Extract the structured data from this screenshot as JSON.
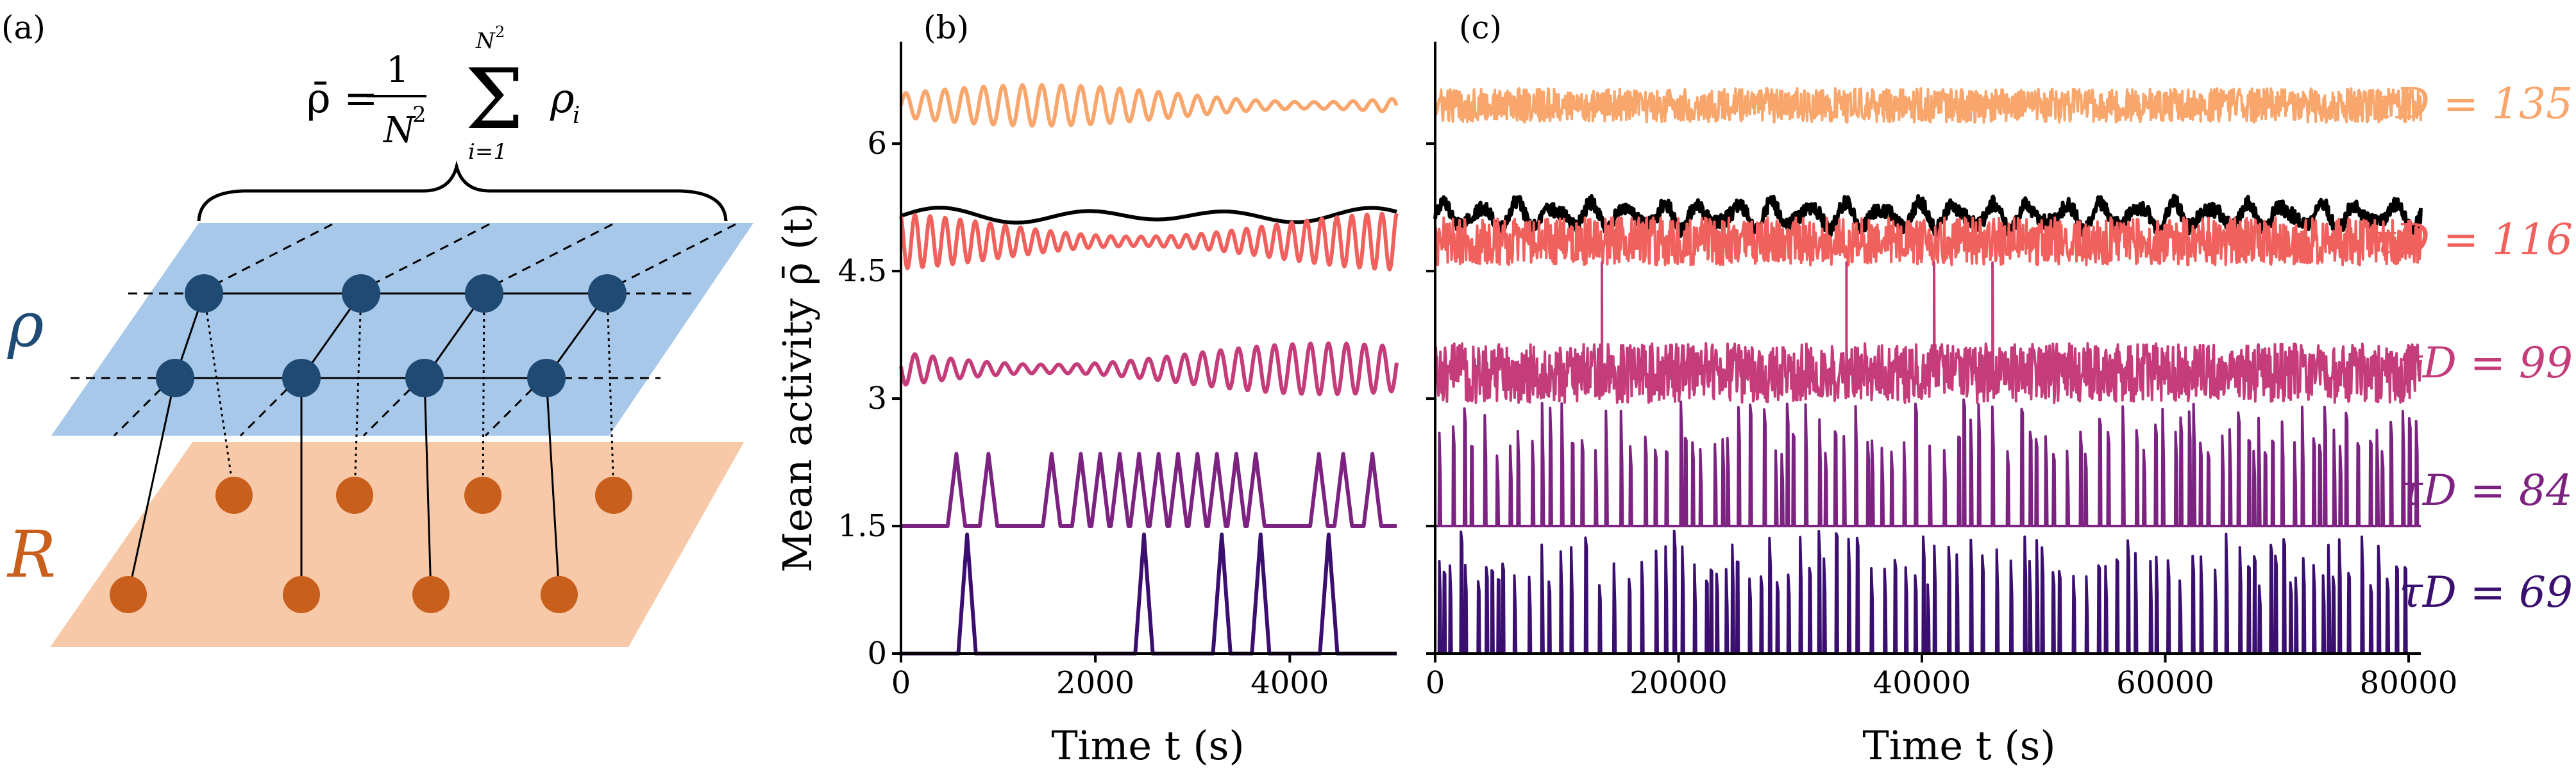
{
  "panel_a": {
    "label": "(a)",
    "formula": {
      "lhs": "ρ̄ =",
      "numerator": "1",
      "denominator": "N",
      "denominator_exp": "2",
      "sum_symbol": "Σ",
      "sum_upper": "N",
      "sum_upper_exp": "2",
      "sum_lower": "i=1",
      "term": "ρ",
      "term_sub": "i"
    },
    "layer_top_label": "ρ",
    "layer_bottom_label": "R",
    "colors": {
      "top_plane": "#a8c8ea",
      "top_node": "#1e4a73",
      "bottom_plane": "#f8c9a8",
      "bottom_node": "#c95f1c"
    }
  },
  "chart_data": [
    {
      "panel": "(b)",
      "type": "line",
      "xlabel": "Time t (s)",
      "ylabel": "Mean activity ρ̄ (t)",
      "xlim": [
        0,
        5100
      ],
      "ylim": [
        0,
        7.2
      ],
      "xticks": [
        "0",
        "2000",
        "4000"
      ],
      "yticks": [
        "0",
        "1.5",
        "3",
        "4.5",
        "6"
      ],
      "ytick_values": [
        0,
        1.5,
        3,
        4.5,
        6
      ],
      "series": [
        {
          "name": "τD = 135",
          "color": "#f9a66c",
          "pattern": "oscillation",
          "baseline": 6.45,
          "amplitude": 0.2,
          "period": 200
        },
        {
          "color": "#000000",
          "pattern": "slow-envelope",
          "baseline": 5.15,
          "amplitude": 0.07,
          "period": 1500
        },
        {
          "name": "τD = 116",
          "color": "#f0605d",
          "pattern": "oscillation",
          "baseline": 4.85,
          "amplitude": 0.28,
          "period": 155
        },
        {
          "name": "τD = 99",
          "color": "#c43c7a",
          "pattern": "oscillation",
          "baseline": 3.35,
          "amplitude": 0.25,
          "period": 185
        },
        {
          "name": "τD = 84",
          "color": "#7c2382",
          "pattern": "spikes",
          "baseline": 1.5,
          "spike_height": 0.85,
          "spike_times": [
            570,
            900,
            1550,
            1850,
            2050,
            2250,
            2450,
            2650,
            2850,
            3050,
            3250,
            3450,
            3650,
            4300,
            4550,
            4850
          ]
        },
        {
          "name": "τD = 69",
          "color": "#3b0f70",
          "pattern": "spikes",
          "baseline": 0,
          "spike_height": 1.4,
          "spike_times": [
            680,
            2500,
            3300,
            3700,
            4400
          ]
        }
      ]
    },
    {
      "panel": "(c)",
      "type": "line",
      "xlabel": "Time t (s)",
      "xlim": [
        0,
        81000
      ],
      "ylim": [
        0,
        7.2
      ],
      "xticks": [
        "0",
        "20000",
        "40000",
        "60000",
        "80000"
      ],
      "series": [
        {
          "name": "τD = 135",
          "color": "#f9a66c",
          "pattern": "dense-noise",
          "baseline": 6.45,
          "amplitude": 0.2
        },
        {
          "color": "#000000",
          "pattern": "envelope",
          "baseline": 5.15,
          "amplitude": 0.12
        },
        {
          "name": "τD = 116",
          "color": "#f0605d",
          "pattern": "dense-noise",
          "baseline": 4.85,
          "amplitude": 0.28
        },
        {
          "name": "τD = 99",
          "color": "#c43c7a",
          "pattern": "dense-noise",
          "baseline": 3.3,
          "amplitude": 0.35
        },
        {
          "name": "τD = 84",
          "color": "#7c2382",
          "pattern": "dense-spikes",
          "baseline": 1.5,
          "spike_height": 1.5
        },
        {
          "name": "τD = 69",
          "color": "#3b0f70",
          "pattern": "dense-spikes",
          "baseline": 0,
          "spike_height": 1.45
        }
      ],
      "labels": [
        {
          "text": "τD = 135",
          "color": "#f9a66c",
          "level": 6.45
        },
        {
          "text": "τD = 116",
          "color": "#f0605d",
          "level": 4.85
        },
        {
          "text": "τD = 99",
          "color": "#c43c7a",
          "level": 3.4
        },
        {
          "text": "τD = 84",
          "color": "#7c2382",
          "level": 1.9
        },
        {
          "text": "τD = 69",
          "color": "#3b0f70",
          "level": 0.7
        }
      ]
    }
  ]
}
